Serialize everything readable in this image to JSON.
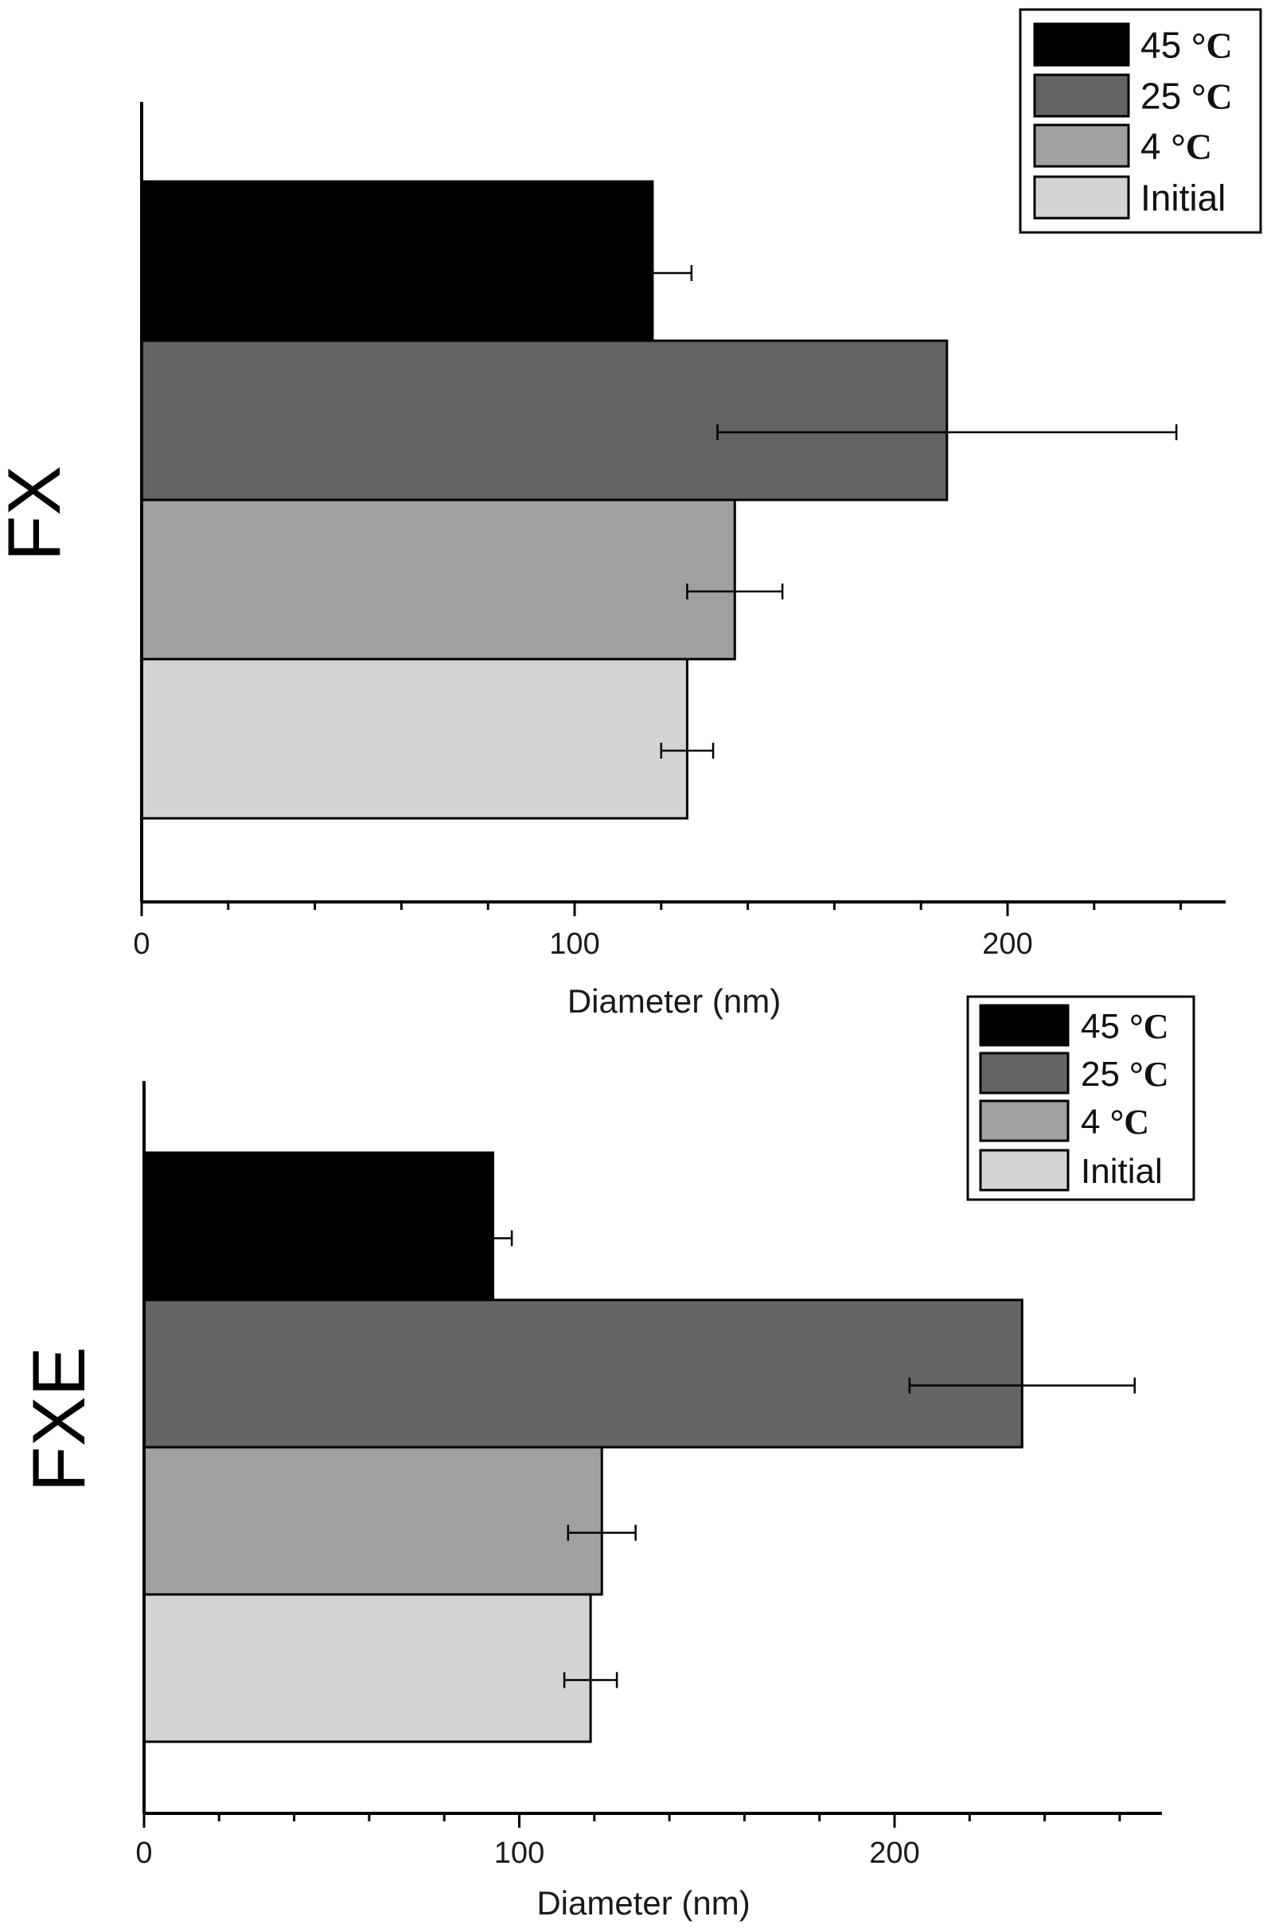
{
  "chart_data": [
    {
      "type": "bar",
      "orientation": "horizontal",
      "ylabel": "FX",
      "xlabel": "Diameter (nm)",
      "xlim": [
        0,
        250
      ],
      "xticks": [
        0,
        100,
        200
      ],
      "grid": false,
      "legend_position": "top-right",
      "categories": [
        "45 °C",
        "25 °C",
        "4 °C",
        "Initial"
      ],
      "series": [
        {
          "name": "45 °C",
          "value": 118,
          "error": 9,
          "color": "#000000"
        },
        {
          "name": "25 °C",
          "value": 186,
          "error": 53,
          "color": "#646464"
        },
        {
          "name": "4 °C",
          "value": 137,
          "error": 11,
          "color": "#a0a0a0"
        },
        {
          "name": "Initial",
          "value": 126,
          "error": 6,
          "color": "#d4d4d4"
        }
      ]
    },
    {
      "type": "bar",
      "orientation": "horizontal",
      "ylabel": "FXE",
      "xlabel": "Diameter (nm)",
      "xlim": [
        0,
        270
      ],
      "xticks": [
        0,
        100,
        200
      ],
      "grid": false,
      "legend_position": "top-right",
      "categories": [
        "45 °C",
        "25 °C",
        "4 °C",
        "Initial"
      ],
      "series": [
        {
          "name": "45 °C",
          "value": 93,
          "error": 5,
          "color": "#000000"
        },
        {
          "name": "25 °C",
          "value": 234,
          "error": 30,
          "color": "#646464"
        },
        {
          "name": "4 °C",
          "value": 122,
          "error": 9,
          "color": "#a0a0a0"
        },
        {
          "name": "Initial",
          "value": 119,
          "error": 7,
          "color": "#d4d4d4"
        }
      ]
    }
  ]
}
